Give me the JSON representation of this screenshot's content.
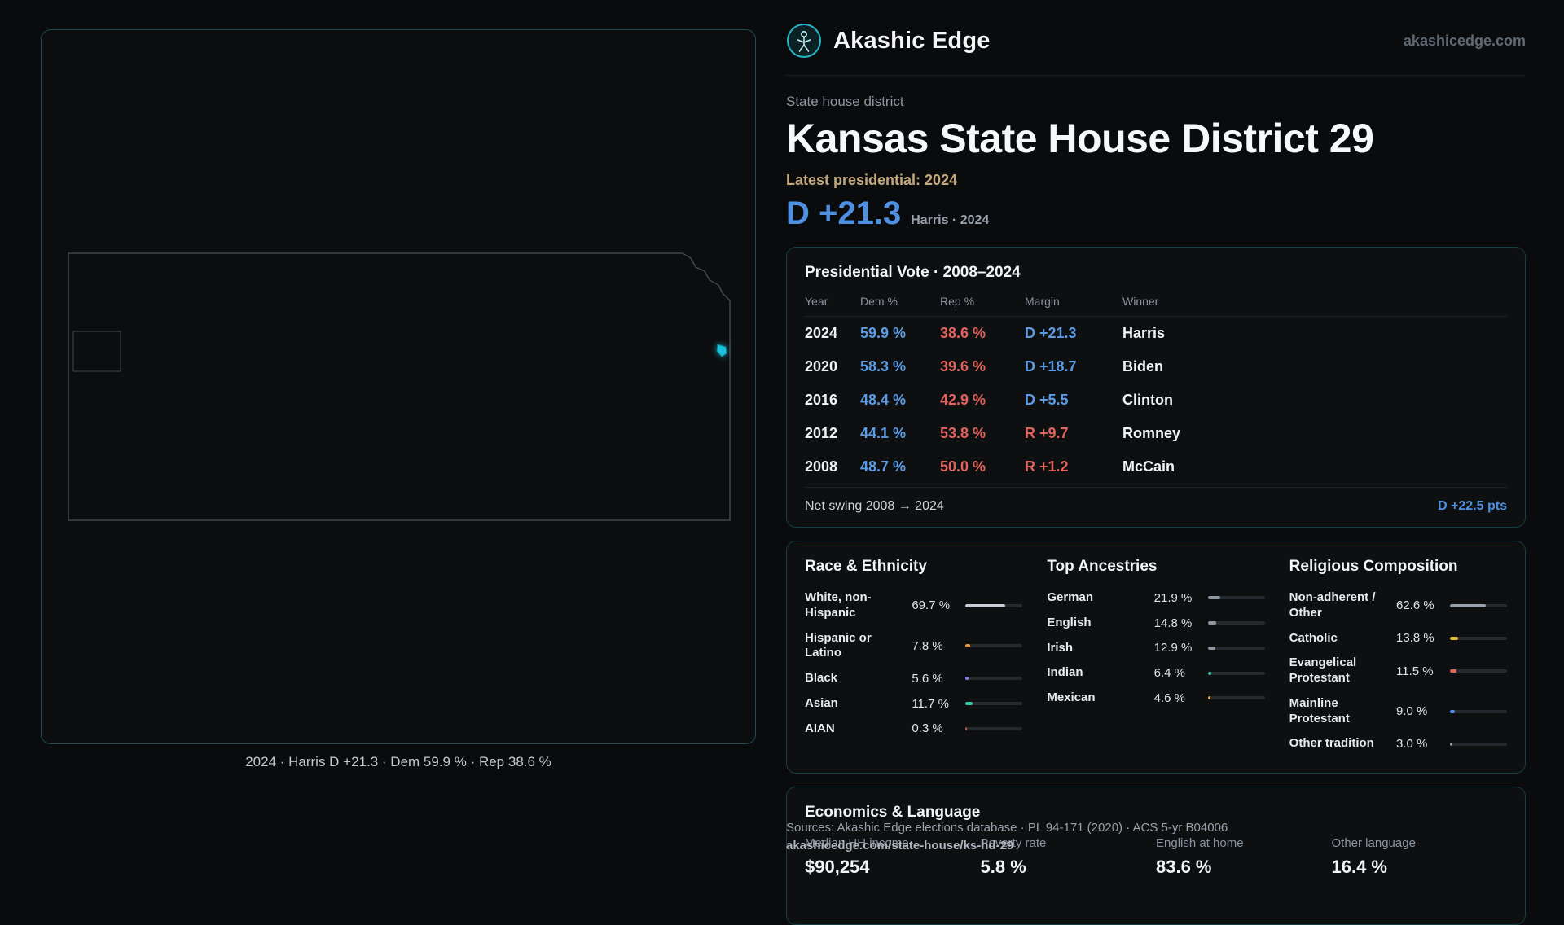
{
  "header": {
    "brand": "Akashic Edge",
    "site": "akashicedge.com"
  },
  "title": {
    "kicker": "State house district",
    "heading": "Kansas State House District 29",
    "latest_label": "Latest presidential: 2024",
    "margin_big": "D +21.3",
    "margin_context": "Harris · 2024"
  },
  "map": {
    "caption": "2024 · Harris D +21.3 · Dem 59.9 % · Rep 38.6 %"
  },
  "presidential_table": {
    "title": "Presidential Vote · 2008–2024",
    "columns": [
      "Year",
      "Dem %",
      "Rep %",
      "Margin",
      "Winner"
    ],
    "rows": [
      {
        "year": "2024",
        "dem": "59.9 %",
        "rep": "38.6 %",
        "margin": "D +21.3",
        "winner": "Harris",
        "party": "D"
      },
      {
        "year": "2020",
        "dem": "58.3 %",
        "rep": "39.6 %",
        "margin": "D +18.7",
        "winner": "Biden",
        "party": "D"
      },
      {
        "year": "2016",
        "dem": "48.4 %",
        "rep": "42.9 %",
        "margin": "D +5.5",
        "winner": "Clinton",
        "party": "D"
      },
      {
        "year": "2012",
        "dem": "44.1 %",
        "rep": "53.8 %",
        "margin": "R +9.7",
        "winner": "Romney",
        "party": "R"
      },
      {
        "year": "2008",
        "dem": "48.7 %",
        "rep": "50.0 %",
        "margin": "R +1.2",
        "winner": "McCain",
        "party": "R"
      }
    ],
    "footer_label": "Net swing 2008 → 2024",
    "footer_value": "D +22.5 pts"
  },
  "demographics": {
    "race": {
      "title": "Race & Ethnicity",
      "items": [
        {
          "label": "White, non-Hispanic",
          "value": "69.7 %",
          "pct": 69.7,
          "color": "#c9ced6"
        },
        {
          "label": "Hispanic or Latino",
          "value": "7.8 %",
          "pct": 7.8,
          "color": "#e8963c"
        },
        {
          "label": "Black",
          "value": "5.6 %",
          "pct": 5.6,
          "color": "#8b7cf7"
        },
        {
          "label": "Asian",
          "value": "11.7 %",
          "pct": 11.7,
          "color": "#35c9a8"
        },
        {
          "label": "AIAN",
          "value": "0.3 %",
          "pct": 0.3,
          "color": "#c05a50"
        }
      ]
    },
    "ancestries": {
      "title": "Top Ancestries",
      "items": [
        {
          "label": "German",
          "value": "21.9 %",
          "pct": 21.9,
          "color": "#8f99a3"
        },
        {
          "label": "English",
          "value": "14.8 %",
          "pct": 14.8,
          "color": "#8f99a3"
        },
        {
          "label": "Irish",
          "value": "12.9 %",
          "pct": 12.9,
          "color": "#8f99a3"
        },
        {
          "label": "Indian",
          "value": "6.4 %",
          "pct": 6.4,
          "color": "#35c9a8"
        },
        {
          "label": "Mexican",
          "value": "4.6 %",
          "pct": 4.6,
          "color": "#e8a43c"
        }
      ]
    },
    "religion": {
      "title": "Religious Composition",
      "items": [
        {
          "label": "Non-adherent / Other",
          "value": "62.6 %",
          "pct": 62.6,
          "color": "#9aa3ad"
        },
        {
          "label": "Catholic",
          "value": "13.8 %",
          "pct": 13.8,
          "color": "#e4c23e"
        },
        {
          "label": "Evangelical Protestant",
          "value": "11.5 %",
          "pct": 11.5,
          "color": "#e0695a"
        },
        {
          "label": "Mainline Protestant",
          "value": "9.0 %",
          "pct": 9.0,
          "color": "#5b8cf0"
        },
        {
          "label": "Other tradition",
          "value": "3.0 %",
          "pct": 3.0,
          "color": "#9aa3ad"
        }
      ]
    }
  },
  "economics": {
    "title": "Economics & Language",
    "stats": [
      {
        "label": "Median HH income",
        "value": "$90,254"
      },
      {
        "label": "Poverty rate",
        "value": "5.8 %"
      },
      {
        "label": "English at home",
        "value": "83.6 %"
      },
      {
        "label": "Other language",
        "value": "16.4 %"
      }
    ]
  },
  "footer": {
    "sources": "Sources: Akashic Edge elections database · PL 94-171 (2020) · ACS 5-yr B04006",
    "permalink": "akashicedge.com/state-house/ks-hd-29"
  },
  "colors": {
    "dem_blue": "#5b9be4",
    "rep_red": "#e2635c",
    "accent_teal": "#22b8c8",
    "district_highlight": "#18c2dc",
    "tan": "#c3a87c"
  }
}
